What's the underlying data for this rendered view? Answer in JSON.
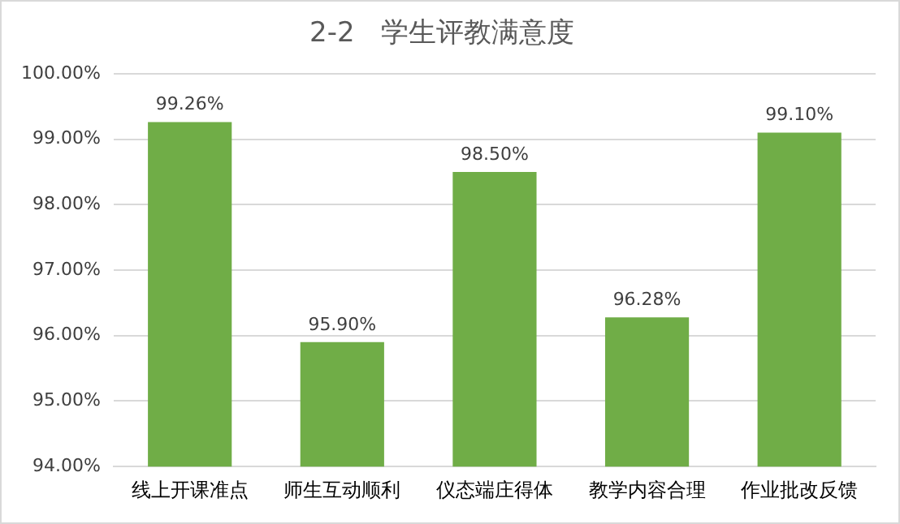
{
  "chart_data": {
    "type": "bar",
    "title": "2-2   学生评教满意度",
    "categories": [
      "线上开课准点",
      "师生互动顺利",
      "仪态端庄得体",
      "教学内容合理",
      "作业批改反馈"
    ],
    "values": [
      99.26,
      95.9,
      98.5,
      96.28,
      99.1
    ],
    "value_labels": [
      "99.26%",
      "95.90%",
      "98.50%",
      "96.28%",
      "99.10%"
    ],
    "color": "#70ad47",
    "ylim": [
      94,
      100
    ],
    "yticks": [
      {
        "value": 94,
        "label": "94.00%"
      },
      {
        "value": 95,
        "label": "95.00%"
      },
      {
        "value": 96,
        "label": "96.00%"
      },
      {
        "value": 97,
        "label": "97.00%"
      },
      {
        "value": 98,
        "label": "98.00%"
      },
      {
        "value": 99,
        "label": "99.00%"
      },
      {
        "value": 100,
        "label": "100.00%"
      }
    ],
    "grid": "y"
  }
}
